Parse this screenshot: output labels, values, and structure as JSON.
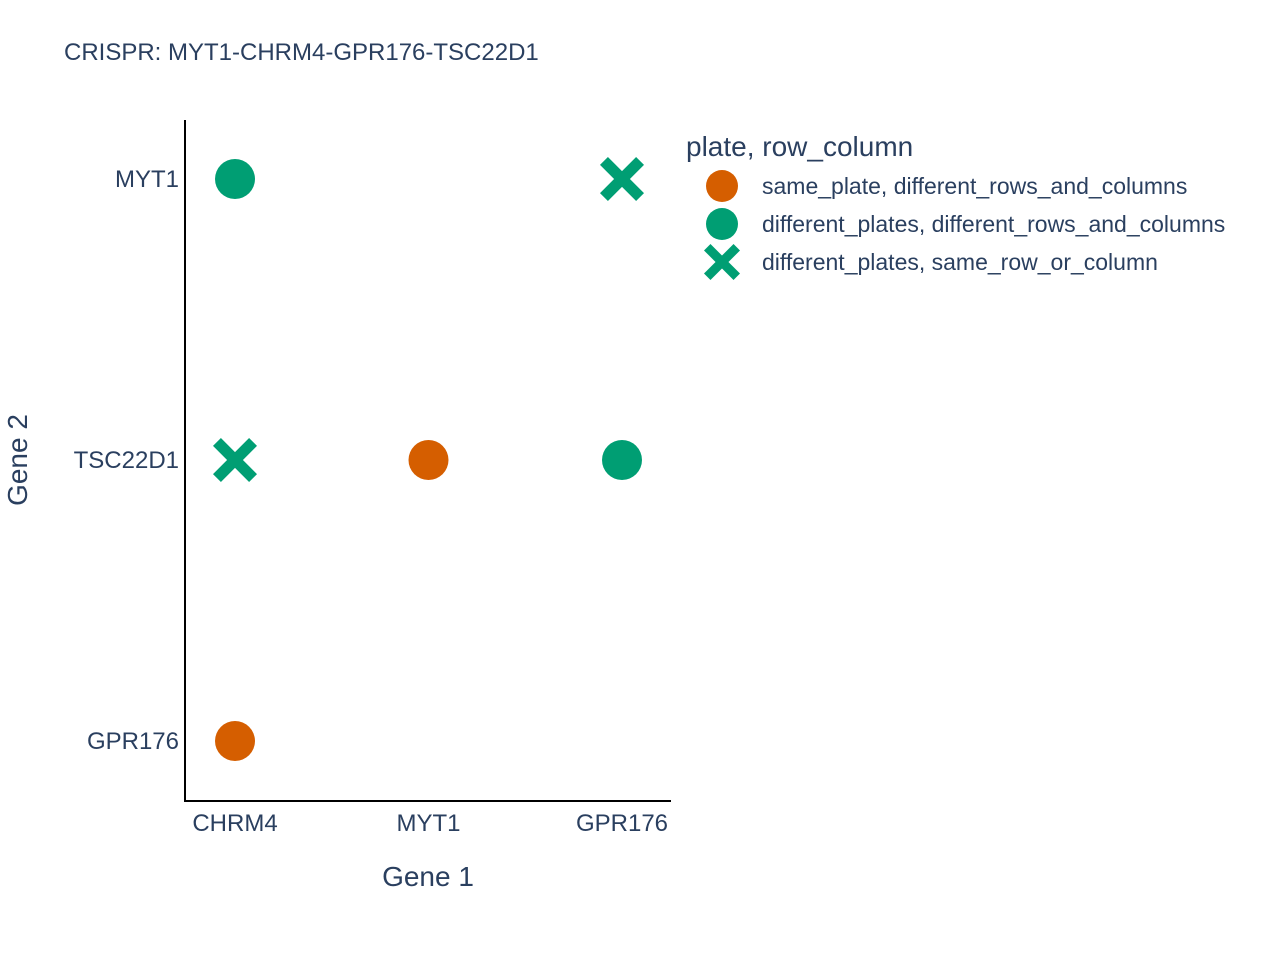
{
  "chart_data": {
    "type": "scatter",
    "title": "CRISPR: MYT1-CHRM4-GPR176-TSC22D1",
    "xlabel": "Gene 1",
    "ylabel": "Gene 2",
    "x_categories": [
      "CHRM4",
      "MYT1",
      "GPR176"
    ],
    "y_categories": [
      "GPR176",
      "TSC22D1",
      "MYT1"
    ],
    "grid": false,
    "legend_title": "plate, row_column",
    "legend_position": "top-right",
    "series": [
      {
        "name": "same_plate, different_rows_and_columns",
        "color": "#d55e00",
        "symbol": "circle",
        "points": [
          {
            "x": "MYT1",
            "y": "TSC22D1"
          },
          {
            "x": "CHRM4",
            "y": "GPR176"
          }
        ]
      },
      {
        "name": "different_plates, different_rows_and_columns",
        "color": "#009e73",
        "symbol": "circle",
        "points": [
          {
            "x": "CHRM4",
            "y": "MYT1"
          },
          {
            "x": "GPR176",
            "y": "TSC22D1"
          }
        ]
      },
      {
        "name": "different_plates, same_row_or_column",
        "color": "#009e73",
        "symbol": "x",
        "points": [
          {
            "x": "GPR176",
            "y": "MYT1"
          },
          {
            "x": "CHRM4",
            "y": "TSC22D1"
          }
        ]
      }
    ]
  }
}
